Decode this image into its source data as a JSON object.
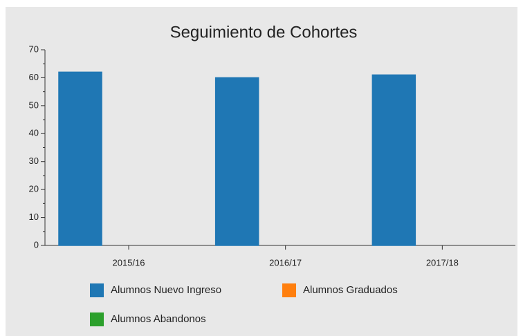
{
  "chart_data": {
    "type": "bar",
    "title": "Seguimiento de Cohortes",
    "categories": [
      "2015/16",
      "2016/17",
      "2017/18"
    ],
    "series": [
      {
        "name": "Alumnos Nuevo Ingreso",
        "color": "#1f77b4",
        "values": [
          62,
          60,
          61
        ]
      },
      {
        "name": "Alumnos Graduados",
        "color": "#ff7f0e",
        "values": [
          0,
          0,
          0
        ]
      },
      {
        "name": "Alumnos Abandonos",
        "color": "#2ca02c",
        "values": [
          0,
          0,
          0
        ]
      }
    ],
    "ylim": [
      0,
      70
    ],
    "yticks": [
      0,
      10,
      20,
      30,
      40,
      50,
      60,
      70
    ]
  }
}
